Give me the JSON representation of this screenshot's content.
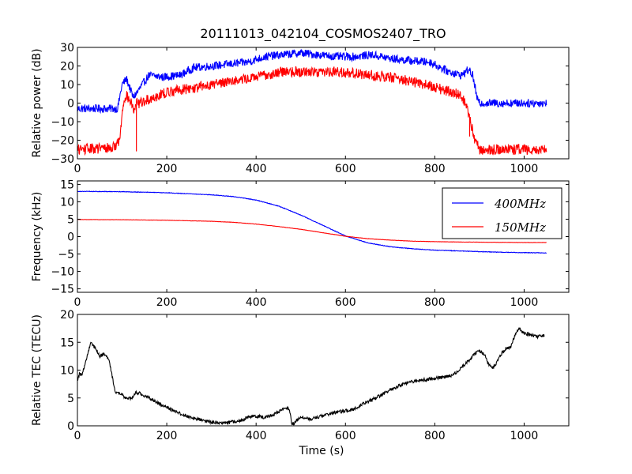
{
  "title": "20111013_042104_COSMOS2407_TRO",
  "chart_data": [
    {
      "type": "line",
      "ylabel": "Relative power (dB)",
      "xlim": [
        0,
        1100
      ],
      "ylim": [
        -30,
        30
      ],
      "xticks": [
        0,
        200,
        400,
        600,
        800,
        1000
      ],
      "yticks": [
        -30,
        -20,
        -10,
        0,
        10,
        20,
        30
      ],
      "series": [
        {
          "color": "#0000ff",
          "noise": 2.2,
          "x": [
            0,
            90,
            100,
            110,
            125,
            140,
            160,
            190,
            230,
            260,
            300,
            340,
            380,
            420,
            460,
            500,
            540,
            580,
            620,
            660,
            700,
            740,
            790,
            830,
            860,
            875,
            885,
            895,
            900,
            1050
          ],
          "y": [
            -3,
            -3,
            10,
            13,
            3,
            8,
            15,
            14,
            15,
            19,
            20,
            21,
            22,
            25,
            26,
            27,
            26,
            25,
            25,
            26,
            24,
            23,
            22,
            17,
            15,
            18,
            15,
            2,
            0,
            0
          ]
        },
        {
          "color": "#ff0000",
          "noise": 2.8,
          "x": [
            0,
            80,
            95,
            100,
            105,
            110,
            120,
            128,
            132,
            140,
            160,
            190,
            220,
            260,
            300,
            340,
            380,
            420,
            460,
            500,
            540,
            580,
            620,
            660,
            700,
            740,
            780,
            820,
            850,
            870,
            880,
            890,
            900,
            950,
            1050
          ],
          "y": [
            -25,
            -24,
            -20,
            -5,
            3,
            4,
            0,
            -5,
            0,
            0,
            2,
            5,
            7,
            8,
            10,
            12,
            13,
            15,
            17,
            17,
            17,
            17,
            16,
            15,
            14,
            12,
            10,
            7,
            5,
            0,
            -10,
            -20,
            -25,
            -25,
            -25
          ]
        }
      ],
      "spikes": [
        {
          "x": 132,
          "y": -26,
          "color": "#ff0000"
        },
        {
          "x": 878,
          "y": -18,
          "color": "#ff0000"
        }
      ]
    },
    {
      "type": "line",
      "ylabel": "Frequency (kHz)",
      "xlim": [
        0,
        1100
      ],
      "ylim": [
        -16,
        16
      ],
      "xticks": [
        0,
        200,
        400,
        600,
        800,
        1000
      ],
      "yticks": [
        -15,
        -10,
        -5,
        0,
        5,
        10,
        15
      ],
      "legend": {
        "position": "top-right"
      },
      "series": [
        {
          "name": "400MHz",
          "color": "#0000ff",
          "noise": 0.08,
          "x": [
            0,
            100,
            200,
            300,
            350,
            400,
            450,
            500,
            550,
            600,
            650,
            700,
            750,
            800,
            850,
            900,
            950,
            1000,
            1050
          ],
          "y": [
            13,
            12.9,
            12.6,
            12,
            11.5,
            10.5,
            8.8,
            6.2,
            3.2,
            0.2,
            -1.8,
            -2.9,
            -3.5,
            -3.9,
            -4.1,
            -4.3,
            -4.5,
            -4.6,
            -4.7
          ]
        },
        {
          "name": "150MHz",
          "color": "#ff0000",
          "noise": 0.04,
          "x": [
            0,
            100,
            200,
            300,
            350,
            400,
            450,
            500,
            550,
            600,
            650,
            700,
            750,
            800,
            850,
            900,
            950,
            1000,
            1050
          ],
          "y": [
            4.9,
            4.85,
            4.7,
            4.4,
            4.1,
            3.6,
            2.9,
            2.1,
            1.1,
            0.1,
            -0.6,
            -1.0,
            -1.3,
            -1.45,
            -1.55,
            -1.6,
            -1.65,
            -1.7,
            -1.7
          ]
        }
      ]
    },
    {
      "type": "line",
      "xlabel": "Time (s)",
      "ylabel": "Relative TEC (TECU)",
      "xlim": [
        0,
        1100
      ],
      "ylim": [
        0,
        20
      ],
      "xticks": [
        0,
        200,
        400,
        600,
        800,
        1000
      ],
      "yticks": [
        0,
        5,
        10,
        15,
        20
      ],
      "series": [
        {
          "color": "#000000",
          "noise": 0.3,
          "x": [
            0,
            5,
            10,
            20,
            30,
            40,
            50,
            60,
            70,
            80,
            85,
            90,
            100,
            110,
            125,
            130,
            140,
            160,
            200,
            240,
            280,
            310,
            340,
            370,
            380,
            400,
            420,
            440,
            460,
            470,
            475,
            480,
            485,
            490,
            500,
            520,
            540,
            560,
            580,
            600,
            620,
            640,
            660,
            680,
            700,
            740,
            780,
            800,
            840,
            860,
            880,
            890,
            900,
            910,
            920,
            930,
            940,
            950,
            960,
            970,
            980,
            990,
            1000,
            1010,
            1030,
            1045
          ],
          "y": [
            8,
            9.5,
            9,
            12,
            14.8,
            14,
            12.5,
            13,
            12,
            8,
            6,
            6,
            5.5,
            5,
            5,
            6,
            5.8,
            5,
            3.3,
            1.8,
            1,
            0.5,
            0.6,
            1,
            1.5,
            1.7,
            1.5,
            2,
            3,
            3.2,
            2.8,
            0.5,
            0.3,
            1,
            1.5,
            1.2,
            1.6,
            2,
            2.5,
            2.7,
            3,
            4,
            4.7,
            5.5,
            6.5,
            7.8,
            8.3,
            8.5,
            9,
            10.5,
            12,
            13,
            13.5,
            13,
            11,
            10.5,
            11.5,
            13,
            14,
            14,
            16.5,
            17.5,
            16.5,
            16.5,
            16,
            16.3
          ]
        }
      ]
    }
  ]
}
